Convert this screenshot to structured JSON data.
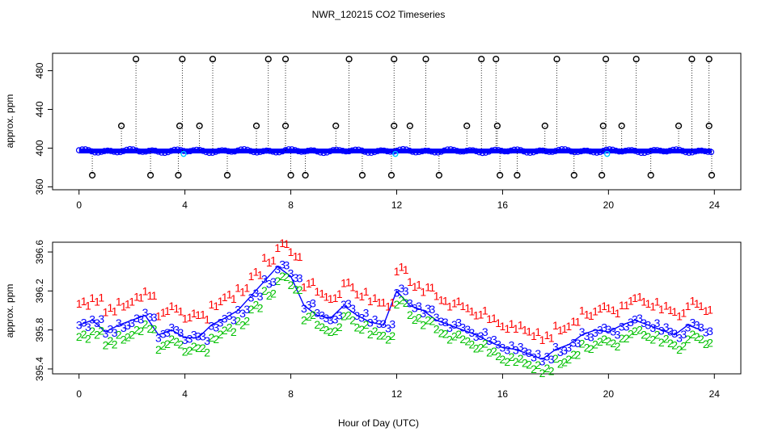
{
  "title": "NWR_120215  CO2 Timeseries",
  "xlabel": "Hour of Day (UTC)",
  "colors": {
    "line": "#0000ff",
    "line_top": "#0000ff",
    "outlier": "#000000",
    "point_top": "#00c8ff",
    "s1": "#ff0000",
    "s2": "#00c000",
    "s3": "#0000ff"
  },
  "chart_data": [
    {
      "type": "scatter",
      "panel": "top",
      "ylabel": "approx. ppm",
      "xlim": [
        -1,
        25
      ],
      "ylim": [
        357,
        498
      ],
      "xticks": [
        0,
        4,
        8,
        12,
        16,
        20,
        24
      ],
      "yticks": [
        360,
        400,
        440,
        480
      ],
      "baseline": 397,
      "high_spikes": [
        2.15,
        3.9,
        5.05,
        7.15,
        7.8,
        10.2,
        11.9,
        13.1,
        15.2,
        15.75,
        18.05,
        19.9,
        21.05,
        23.15,
        23.8
      ],
      "mid_spikes": [
        1.6,
        3.8,
        4.55,
        6.7,
        7.8,
        9.7,
        11.9,
        12.5,
        14.65,
        15.8,
        17.6,
        19.8,
        20.5,
        22.65,
        23.8
      ],
      "low_spikes": [
        0.5,
        2.7,
        3.75,
        5.6,
        8.0,
        8.55,
        10.7,
        11.8,
        13.6,
        15.9,
        16.55,
        18.7,
        19.75,
        21.6,
        23.9
      ],
      "high_value": 492,
      "mid_value": 423,
      "low_value": 372
    },
    {
      "type": "line",
      "panel": "bottom",
      "ylabel": "approx. ppm",
      "xlim": [
        -1,
        25
      ],
      "ylim": [
        395.35,
        396.7
      ],
      "xticks": [
        0,
        4,
        8,
        12,
        16,
        20,
        24
      ],
      "yticks": [
        395.4,
        395.8,
        396.2,
        396.6
      ],
      "ytick_labels": [
        "395.4",
        "395.8",
        "396.2",
        "396.6"
      ],
      "series": [
        {
          "name": "1",
          "offset": 0.22
        },
        {
          "name": "2",
          "offset": -0.12
        },
        {
          "name": "3",
          "offset": 0
        }
      ],
      "x": [
        0,
        0.5,
        1,
        1.5,
        2,
        2.5,
        3,
        3.5,
        4,
        4.5,
        5,
        5.5,
        6,
        6.5,
        7,
        7.5,
        8,
        8.5,
        9,
        9.5,
        10,
        10.5,
        11,
        11.5,
        12,
        12.5,
        13,
        13.5,
        14,
        14.5,
        15,
        15.5,
        16,
        16.5,
        17,
        17.5,
        18,
        18.5,
        19,
        19.5,
        20,
        20.5,
        21,
        21.5,
        22,
        22.5,
        23,
        23.5
      ],
      "values": [
        395.85,
        395.9,
        395.78,
        395.85,
        395.9,
        395.95,
        395.75,
        395.8,
        395.72,
        395.72,
        395.85,
        395.92,
        396.0,
        396.15,
        396.3,
        396.45,
        396.35,
        396.05,
        395.95,
        395.92,
        396.05,
        395.95,
        395.88,
        395.85,
        396.2,
        396.05,
        396.0,
        395.9,
        395.85,
        395.8,
        395.75,
        395.68,
        395.62,
        395.6,
        395.55,
        395.5,
        395.6,
        395.65,
        395.75,
        395.8,
        395.78,
        395.85,
        395.9,
        395.85,
        395.8,
        395.75,
        395.85,
        395.8
      ]
    }
  ]
}
